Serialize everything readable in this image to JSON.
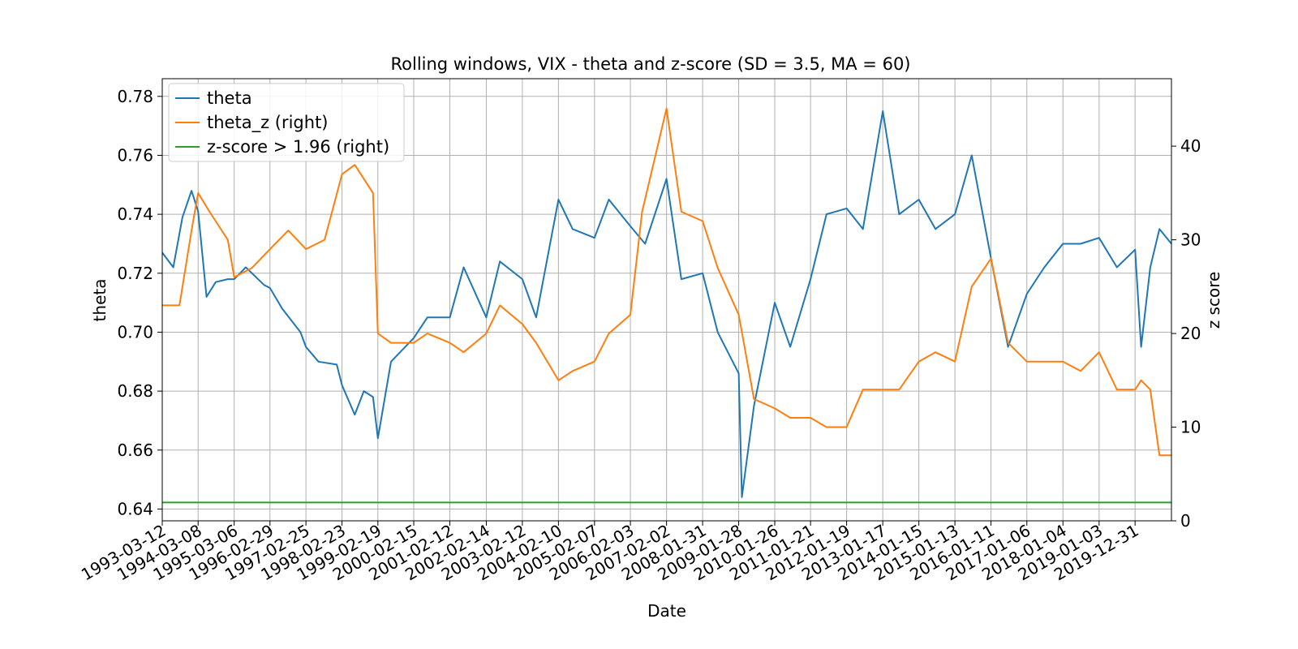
{
  "chart_data": {
    "type": "line",
    "title": "Rolling windows, VIX - theta and z-score (SD = 3.5, MA = 60)",
    "xlabel": "Date",
    "ylabel": "theta",
    "y2label": "z score",
    "xlim": [
      "1993-03-12",
      "2020-12-31"
    ],
    "ylim": [
      0.636,
      0.786
    ],
    "y2lim": [
      0,
      47.2
    ],
    "grid": true,
    "legend_position": "top-left",
    "x_tick_labels": [
      "1993-03-12",
      "1994-03-08",
      "1995-03-06",
      "1996-02-29",
      "1997-02-25",
      "1998-02-23",
      "1999-02-19",
      "2000-02-15",
      "2001-02-12",
      "2002-02-14",
      "2003-02-12",
      "2004-02-10",
      "2005-02-07",
      "2006-02-03",
      "2007-02-02",
      "2008-01-31",
      "2009-01-28",
      "2010-01-26",
      "2011-01-21",
      "2012-01-19",
      "2013-01-17",
      "2014-01-15",
      "2015-01-13",
      "2016-01-11",
      "2017-01-06",
      "2018-01-04",
      "2019-01-03",
      "2019-12-31"
    ],
    "y_ticks": [
      0.64,
      0.66,
      0.68,
      0.7,
      0.72,
      0.74,
      0.76,
      0.78
    ],
    "y_tick_labels": [
      "0.64",
      "0.66",
      "0.68",
      "0.70",
      "0.72",
      "0.74",
      "0.76",
      "0.78"
    ],
    "y2_ticks": [
      0,
      10,
      20,
      30,
      40
    ],
    "y2_tick_labels": [
      "0",
      "10",
      "20",
      "30",
      "40"
    ],
    "series": [
      {
        "name": "theta",
        "axis": "left",
        "color": "#1f77b4",
        "x": [
          "1993-03-12",
          "1993-07-01",
          "1993-10-01",
          "1994-01-01",
          "1994-03-08",
          "1994-06-01",
          "1994-09-01",
          "1995-01-01",
          "1995-03-06",
          "1995-07-01",
          "1996-01-01",
          "1996-02-29",
          "1996-07-01",
          "1997-01-01",
          "1997-02-25",
          "1997-07-01",
          "1998-01-01",
          "1998-02-23",
          "1998-07-01",
          "1998-10-01",
          "1999-01-01",
          "1999-02-19",
          "1999-07-01",
          "2000-02-15",
          "2000-07-01",
          "2001-02-12",
          "2001-07-01",
          "2002-02-14",
          "2002-07-01",
          "2003-02-12",
          "2003-07-01",
          "2004-02-10",
          "2004-07-01",
          "2005-02-07",
          "2005-07-01",
          "2006-02-03",
          "2006-07-01",
          "2007-02-02",
          "2007-07-01",
          "2008-01-31",
          "2008-07-01",
          "2009-01-28",
          "2009-03-01",
          "2009-07-01",
          "2010-01-26",
          "2010-07-01",
          "2011-01-21",
          "2011-07-01",
          "2012-01-19",
          "2012-07-01",
          "2013-01-17",
          "2013-07-01",
          "2014-01-15",
          "2014-07-01",
          "2015-01-13",
          "2015-07-01",
          "2016-01-11",
          "2016-07-01",
          "2017-01-06",
          "2017-07-01",
          "2018-01-04",
          "2018-07-01",
          "2019-01-03",
          "2019-07-01",
          "2019-12-31",
          "2020-03-01",
          "2020-06-01",
          "2020-09-01",
          "2020-12-31"
        ],
        "values": [
          0.727,
          0.722,
          0.739,
          0.748,
          0.741,
          0.712,
          0.717,
          0.718,
          0.718,
          0.722,
          0.716,
          0.715,
          0.708,
          0.7,
          0.695,
          0.69,
          0.689,
          0.682,
          0.672,
          0.68,
          0.678,
          0.664,
          0.69,
          0.698,
          0.705,
          0.705,
          0.722,
          0.705,
          0.724,
          0.718,
          0.705,
          0.745,
          0.735,
          0.732,
          0.745,
          0.736,
          0.73,
          0.752,
          0.718,
          0.72,
          0.7,
          0.686,
          0.644,
          0.675,
          0.71,
          0.695,
          0.718,
          0.74,
          0.742,
          0.735,
          0.775,
          0.74,
          0.745,
          0.735,
          0.74,
          0.76,
          0.725,
          0.695,
          0.713,
          0.722,
          0.73,
          0.73,
          0.732,
          0.722,
          0.728,
          0.695,
          0.722,
          0.735,
          0.73
        ]
      },
      {
        "name": "theta_z (right)",
        "axis": "right",
        "color": "#ff7f0e",
        "x": [
          "1993-03-12",
          "1993-09-01",
          "1994-01-01",
          "1994-03-08",
          "1994-07-01",
          "1995-01-01",
          "1995-03-06",
          "1995-09-01",
          "1996-02-29",
          "1996-09-01",
          "1997-02-25",
          "1997-09-01",
          "1998-02-23",
          "1998-07-01",
          "1999-01-01",
          "1999-02-19",
          "1999-07-01",
          "2000-02-15",
          "2000-07-01",
          "2001-02-12",
          "2001-07-01",
          "2002-02-14",
          "2002-07-01",
          "2003-02-12",
          "2003-07-01",
          "2004-02-10",
          "2004-07-01",
          "2005-02-07",
          "2005-07-01",
          "2006-02-03",
          "2006-06-01",
          "2007-02-02",
          "2007-07-01",
          "2008-01-31",
          "2008-07-01",
          "2009-01-28",
          "2009-07-01",
          "2010-01-26",
          "2010-07-01",
          "2011-01-21",
          "2011-07-01",
          "2012-01-19",
          "2012-07-01",
          "2013-01-17",
          "2013-07-01",
          "2014-01-15",
          "2014-07-01",
          "2015-01-13",
          "2015-07-01",
          "2016-01-11",
          "2016-07-01",
          "2017-01-06",
          "2017-07-01",
          "2018-01-04",
          "2018-07-01",
          "2019-01-03",
          "2019-07-01",
          "2019-12-31",
          "2020-03-01",
          "2020-06-01",
          "2020-09-01",
          "2020-12-31"
        ],
        "values": [
          23,
          23,
          31,
          35,
          33,
          30,
          26,
          27,
          29,
          31,
          29,
          30,
          37,
          38,
          35,
          20,
          19,
          19,
          20,
          19,
          18,
          20,
          23,
          21,
          19,
          15,
          16,
          17,
          20,
          22,
          33,
          44,
          33,
          32,
          27,
          22,
          13,
          12,
          11,
          11,
          10,
          10,
          14,
          14,
          14,
          17,
          18,
          17,
          25,
          28,
          19,
          17,
          17,
          17,
          16,
          18,
          14,
          14,
          15,
          14,
          7,
          7
        ]
      },
      {
        "name": "z-score > 1.96 (right)",
        "axis": "right",
        "color": "#2ca02c",
        "x": [
          "1993-03-12",
          "2020-12-31"
        ],
        "values": [
          1.96,
          1.96
        ]
      }
    ]
  }
}
